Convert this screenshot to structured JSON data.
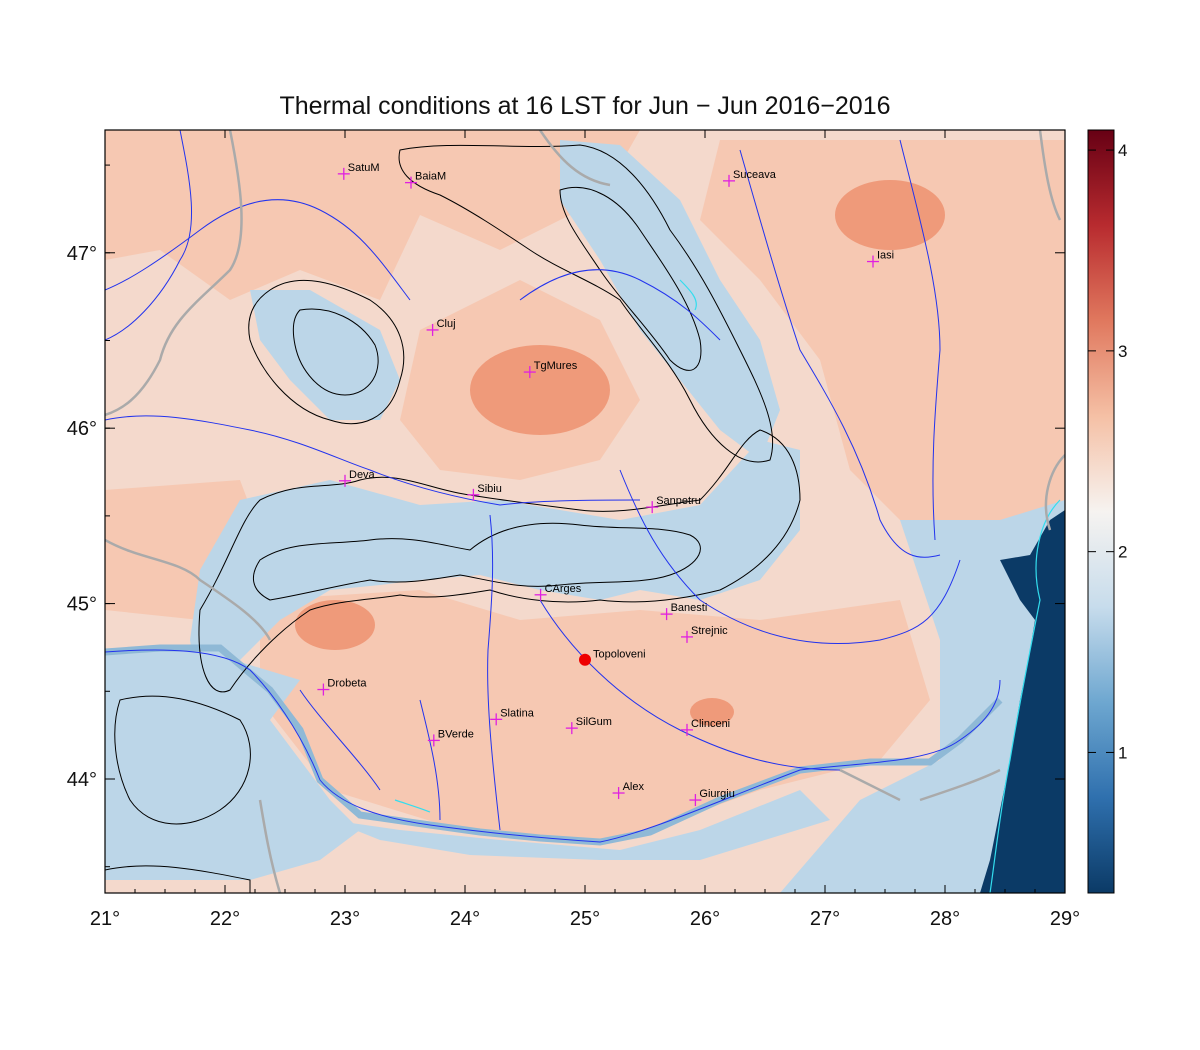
{
  "title": "Thermal conditions at 16 LST for Jun − Jun  2016−2016",
  "colors": {
    "warm": "#ef9a7a",
    "warm_light": "#f6c8b2",
    "neutral": "#f5f1ee",
    "cool": "#bcd6e8",
    "cool_mid": "#8fb9d6",
    "sea": "#0b3a66",
    "river": "#2233ee",
    "coast": "#33ddee",
    "border": "#aaaaaa",
    "contour": "#000000",
    "city_marker": "#e020e0",
    "highlight": "#ee0000"
  },
  "map": {
    "lon_range": [
      21,
      29
    ],
    "lat_range": [
      43.35,
      47.7
    ],
    "x_ticks": [
      "21°",
      "22°",
      "23°",
      "24°",
      "25°",
      "26°",
      "27°",
      "28°",
      "29°"
    ],
    "y_ticks": [
      {
        "lat": 44,
        "label": "44°"
      },
      {
        "lat": 45,
        "label": "45°"
      },
      {
        "lat": 46,
        "label": "46°"
      },
      {
        "lat": 47,
        "label": "47°"
      }
    ]
  },
  "cities": [
    {
      "name": "SatuM",
      "lon": 22.99,
      "lat": 47.45
    },
    {
      "name": "BaiaM",
      "lon": 23.55,
      "lat": 47.4
    },
    {
      "name": "Suceava",
      "lon": 26.2,
      "lat": 47.41
    },
    {
      "name": "Iasi",
      "lon": 27.4,
      "lat": 46.95
    },
    {
      "name": "Cluj",
      "lon": 23.73,
      "lat": 46.56
    },
    {
      "name": "TgMures",
      "lon": 24.54,
      "lat": 46.32
    },
    {
      "name": "Deva",
      "lon": 23.0,
      "lat": 45.7
    },
    {
      "name": "Sibiu",
      "lon": 24.07,
      "lat": 45.62
    },
    {
      "name": "Sanpetru",
      "lon": 25.56,
      "lat": 45.55
    },
    {
      "name": "CArges",
      "lon": 24.63,
      "lat": 45.05
    },
    {
      "name": "Banesti",
      "lon": 25.68,
      "lat": 44.94
    },
    {
      "name": "Strejnic",
      "lon": 25.85,
      "lat": 44.81
    },
    {
      "name": "Drobeta",
      "lon": 22.82,
      "lat": 44.51
    },
    {
      "name": "Slatina",
      "lon": 24.26,
      "lat": 44.34
    },
    {
      "name": "SilGum",
      "lon": 24.89,
      "lat": 44.29
    },
    {
      "name": "Clinceni",
      "lon": 25.85,
      "lat": 44.28
    },
    {
      "name": "BVerde",
      "lon": 23.74,
      "lat": 44.22
    },
    {
      "name": "Alex",
      "lon": 25.28,
      "lat": 43.92
    },
    {
      "name": "Giurgiu",
      "lon": 25.92,
      "lat": 43.88
    }
  ],
  "highlight_site": {
    "name": "Topoloveni",
    "lon": 25.0,
    "lat": 44.68
  },
  "colorbar": {
    "min": 0.3,
    "max": 4.1,
    "ticks": [
      "1",
      "2",
      "3",
      "4"
    ],
    "stops": [
      "#0b3a66",
      "#2f70ae",
      "#6ea7d0",
      "#c7dcec",
      "#f6f3f0",
      "#f5c0a5",
      "#e0785e",
      "#b82b2f",
      "#670014"
    ]
  }
}
